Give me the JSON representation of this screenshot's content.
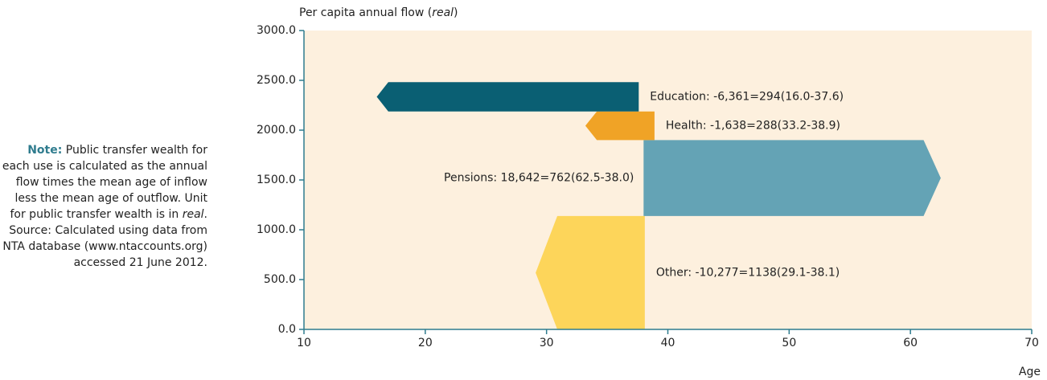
{
  "chart_data": {
    "type": "flow-arrows",
    "ylabel": [
      "Per capita annual flow (",
      "real",
      ")"
    ],
    "xlabel": "Age",
    "xlim": [
      10,
      70
    ],
    "xticks": [
      10,
      20,
      30,
      40,
      50,
      60,
      70
    ],
    "ylim": [
      0,
      3000
    ],
    "yticks": [
      {
        "value": 0,
        "label": "0.0"
      },
      {
        "value": 500,
        "label": "500.0"
      },
      {
        "value": 1000,
        "label": "1000.0"
      },
      {
        "value": 1500,
        "label": "1500.0"
      },
      {
        "value": 2000,
        "label": "2000.0"
      },
      {
        "value": 2500,
        "label": "2500.0"
      },
      {
        "value": 3000,
        "label": "3000.0"
      }
    ],
    "series": [
      {
        "name": "Other: -10,277=1138(29.1-38.1)",
        "color": "#fdd55a",
        "flow": 1138,
        "inflow_age": 29.1,
        "outflow_age": 38.1
      },
      {
        "name": "Pensions: 18,642=762(62.5-38.0)",
        "color": "#64a3b5",
        "flow": 762,
        "inflow_age": 62.5,
        "outflow_age": 38.0
      },
      {
        "name": "Health: -1,638=288(33.2-38.9)",
        "color": "#f0a326",
        "flow": 288,
        "inflow_age": 33.2,
        "outflow_age": 38.9
      },
      {
        "name": "Education: -6,361=294(16.0-37.6)",
        "color": "#0a5f73",
        "flow": 294,
        "inflow_age": 16.0,
        "outflow_age": 37.6
      }
    ]
  },
  "note": {
    "lead": "Note:",
    "text1": " Public transfer wealth for each use is calculated as the annual flow times the mean age of inflow less the mean age of outflow. Unit for public transfer wealth is in ",
    "italic": "real",
    "text2": ". Source: Calculated using data from NTA database (www.ntaccounts.org) accessed 21 June 2012."
  }
}
